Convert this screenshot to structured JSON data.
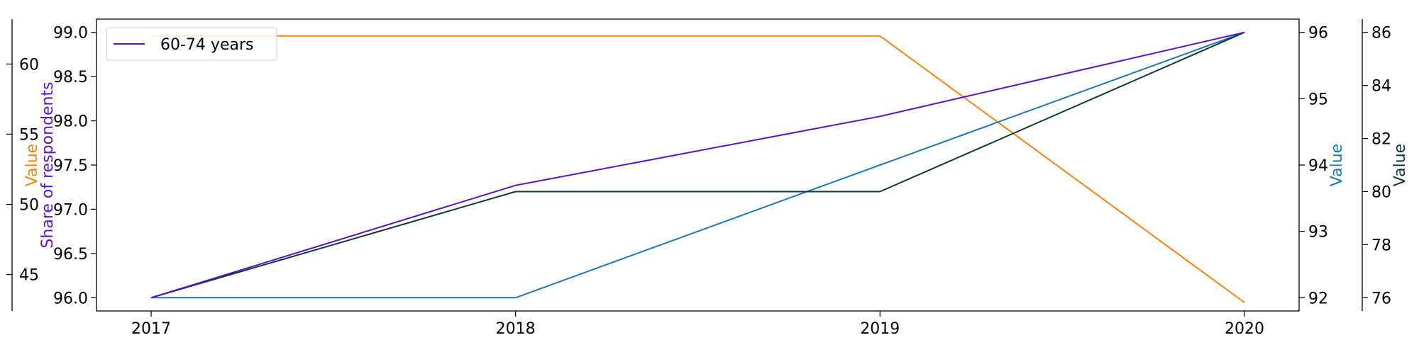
{
  "chart_data": {
    "type": "line",
    "x": [
      2017,
      2018,
      2019,
      2020
    ],
    "x_tick_labels": [
      "2017",
      "2018",
      "2019",
      "2020"
    ],
    "legend": {
      "placement": "top-left",
      "entries": [
        "60-74 years"
      ]
    },
    "axes": [
      {
        "id": "primary-left",
        "label": "Share of respondents",
        "color": "#5a13c8",
        "ylim": [
          95.85,
          99.15
        ],
        "ticks": [
          96.0,
          96.5,
          97.0,
          97.5,
          98.0,
          98.5,
          99.0
        ],
        "tick_labels": [
          "96.0",
          "96.5",
          "97.0",
          "97.5",
          "98.0",
          "98.5",
          "99.0"
        ]
      },
      {
        "id": "outer-left",
        "label": "Value",
        "color": "#ff7f0e",
        "ylim": [
          42.4,
          63.2
        ],
        "ticks": [
          45,
          50,
          55,
          60
        ],
        "tick_labels": [
          "45",
          "50",
          "55",
          "60"
        ]
      },
      {
        "id": "inner-right",
        "label": "Value",
        "color": "#1f77b4",
        "ylim": [
          91.8,
          96.2
        ],
        "ticks": [
          92,
          93,
          94,
          95,
          96
        ],
        "tick_labels": [
          "92",
          "93",
          "94",
          "95",
          "96"
        ]
      },
      {
        "id": "outer-right",
        "label": "Value",
        "color": "#0b3b3b",
        "ylim": [
          75.5,
          86.5
        ],
        "ticks": [
          76,
          78,
          80,
          82,
          84,
          86
        ],
        "tick_labels": [
          "76",
          "78",
          "80",
          "82",
          "84",
          "86"
        ]
      }
    ],
    "series": [
      {
        "name": "60-74 years",
        "axis": "primary-left",
        "color": "#5a13c8",
        "values": [
          96.0,
          97.27,
          98.05,
          99.0
        ]
      },
      {
        "axis": "outer-left",
        "color": "#ff7f0e",
        "values": [
          62.0,
          62.0,
          62.0,
          43.0
        ]
      },
      {
        "axis": "inner-right",
        "color": "#1f77b4",
        "values": [
          92,
          92,
          94,
          96
        ]
      },
      {
        "axis": "outer-right",
        "color": "#0b3b3b",
        "values": [
          76,
          80,
          80,
          86
        ]
      }
    ]
  }
}
